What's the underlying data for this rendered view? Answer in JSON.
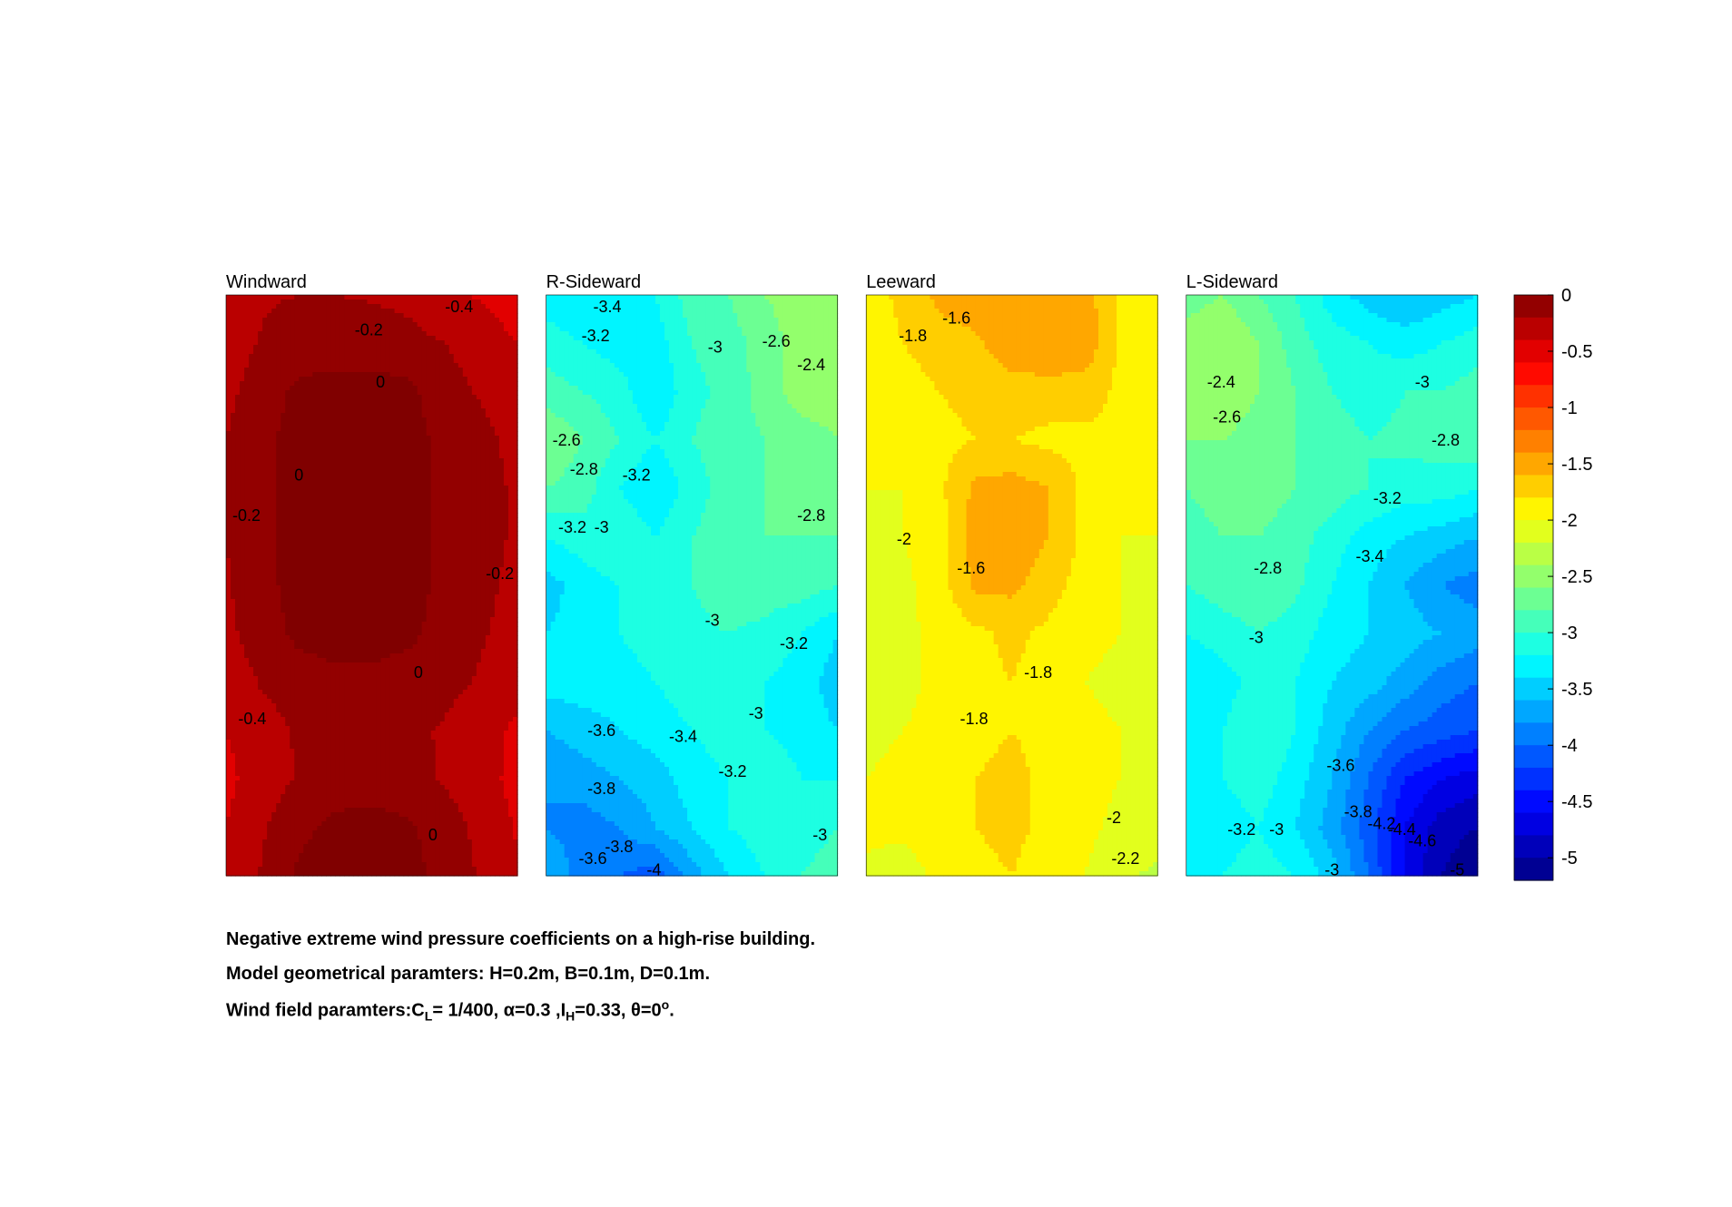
{
  "chart_data": {
    "type": "contour",
    "colormap": "jet",
    "colorbar": {
      "ticks": [
        "0",
        "-0.5",
        "-1",
        "-1.5",
        "-2",
        "-2.5",
        "-3",
        "-3.5",
        "-4",
        "-4.5",
        "-5"
      ],
      "range": [
        -5.2,
        0
      ]
    },
    "panels": [
      {
        "title": "Windward",
        "grid": [
          [
            -0.4,
            -0.22,
            -0.2,
            -0.2,
            -0.22,
            -0.25,
            -0.35,
            -0.42,
            -0.5
          ],
          [
            -0.3,
            -0.18,
            -0.12,
            -0.1,
            -0.1,
            -0.14,
            -0.2,
            -0.3,
            -0.4
          ],
          [
            -0.25,
            -0.1,
            0.05,
            0.08,
            0.08,
            0.05,
            -0.12,
            -0.22,
            -0.3
          ],
          [
            -0.2,
            -0.05,
            0.08,
            0.1,
            0.1,
            0.08,
            -0.05,
            -0.15,
            -0.25
          ],
          [
            -0.2,
            -0.05,
            0.1,
            0.12,
            0.12,
            0.1,
            -0.05,
            -0.15,
            -0.22
          ],
          [
            -0.2,
            -0.05,
            0.1,
            0.12,
            0.12,
            0.1,
            -0.05,
            -0.15,
            -0.22
          ],
          [
            -0.22,
            -0.06,
            0.08,
            0.1,
            0.1,
            0.08,
            -0.05,
            -0.15,
            -0.25
          ],
          [
            -0.25,
            -0.1,
            0.05,
            0.08,
            0.08,
            0.05,
            -0.08,
            -0.18,
            -0.28
          ],
          [
            -0.32,
            -0.18,
            -0.1,
            -0.05,
            -0.05,
            -0.1,
            -0.15,
            -0.22,
            -0.32
          ],
          [
            -0.4,
            -0.28,
            -0.18,
            -0.14,
            -0.14,
            -0.16,
            -0.22,
            -0.3,
            -0.45
          ],
          [
            -0.45,
            -0.3,
            -0.18,
            -0.1,
            -0.1,
            -0.14,
            -0.22,
            -0.3,
            -0.48
          ],
          [
            -0.4,
            -0.22,
            -0.05,
            0.05,
            0.08,
            0.04,
            -0.12,
            -0.25,
            -0.42
          ],
          [
            -0.35,
            -0.18,
            0.04,
            0.1,
            0.12,
            0.08,
            -0.08,
            -0.22,
            -0.38
          ]
        ],
        "labels": [
          {
            "text": "-0.4",
            "x": 0.8,
            "y": 0.02
          },
          {
            "text": "-0.2",
            "x": 0.49,
            "y": 0.06
          },
          {
            "text": "0",
            "x": 0.53,
            "y": 0.15
          },
          {
            "text": "0",
            "x": 0.25,
            "y": 0.31
          },
          {
            "text": "-0.2",
            "x": 0.07,
            "y": 0.38
          },
          {
            "text": "-0.2",
            "x": 0.94,
            "y": 0.48
          },
          {
            "text": "0",
            "x": 0.66,
            "y": 0.65
          },
          {
            "text": "-0.4",
            "x": 0.09,
            "y": 0.73
          },
          {
            "text": "0",
            "x": 0.71,
            "y": 0.93
          }
        ]
      },
      {
        "title": "R-Sideward",
        "grid": [
          [
            -3.3,
            -3.4,
            -3.35,
            -3.2,
            -2.9,
            -2.8,
            -2.6,
            -2.5,
            -2.6
          ],
          [
            -3.1,
            -3.2,
            -3.3,
            -3.3,
            -3.0,
            -2.9,
            -2.7,
            -2.5,
            -2.4
          ],
          [
            -2.9,
            -3.0,
            -3.1,
            -3.4,
            -3.05,
            -2.95,
            -2.7,
            -2.5,
            -2.5
          ],
          [
            -2.6,
            -2.8,
            -3.0,
            -3.2,
            -3.0,
            -2.9,
            -2.8,
            -2.7,
            -2.6
          ],
          [
            -2.8,
            -2.9,
            -3.2,
            -3.4,
            -3.1,
            -2.9,
            -2.8,
            -2.8,
            -2.7
          ],
          [
            -3.2,
            -3.1,
            -3.0,
            -3.2,
            -3.0,
            -2.9,
            -2.8,
            -2.8,
            -2.8
          ],
          [
            -3.5,
            -3.3,
            -3.2,
            -3.1,
            -3.0,
            -2.9,
            -2.9,
            -2.9,
            -3.0
          ],
          [
            -3.4,
            -3.3,
            -3.2,
            -3.1,
            -3.05,
            -3.0,
            -3.05,
            -3.2,
            -3.4
          ],
          [
            -3.3,
            -3.3,
            -3.3,
            -3.2,
            -3.1,
            -3.1,
            -3.2,
            -3.3,
            -3.5
          ],
          [
            -3.6,
            -3.5,
            -3.4,
            -3.3,
            -3.2,
            -3.1,
            -3.2,
            -3.3,
            -3.4
          ],
          [
            -3.8,
            -3.7,
            -3.6,
            -3.5,
            -3.3,
            -3.2,
            -3.0,
            -3.2,
            -3.2
          ],
          [
            -3.8,
            -3.9,
            -3.8,
            -3.6,
            -3.4,
            -3.2,
            -3.1,
            -3.1,
            -3.0
          ],
          [
            -3.6,
            -3.9,
            -4.0,
            -4.1,
            -3.7,
            -3.4,
            -3.2,
            -3.0,
            -2.9
          ]
        ],
        "labels": [
          {
            "text": "-3.4",
            "x": 0.21,
            "y": 0.02
          },
          {
            "text": "-3.2",
            "x": 0.17,
            "y": 0.07
          },
          {
            "text": "-3",
            "x": 0.58,
            "y": 0.09
          },
          {
            "text": "-2.6",
            "x": 0.79,
            "y": 0.08
          },
          {
            "text": "-2.4",
            "x": 0.91,
            "y": 0.12
          },
          {
            "text": "-2.6",
            "x": 0.07,
            "y": 0.25
          },
          {
            "text": "-2.8",
            "x": 0.13,
            "y": 0.3
          },
          {
            "text": "-3.2",
            "x": 0.31,
            "y": 0.31
          },
          {
            "text": "-3.2",
            "x": 0.09,
            "y": 0.4
          },
          {
            "text": "-3",
            "x": 0.19,
            "y": 0.4
          },
          {
            "text": "-2.8",
            "x": 0.91,
            "y": 0.38
          },
          {
            "text": "-3",
            "x": 0.57,
            "y": 0.56
          },
          {
            "text": "-3.2",
            "x": 0.85,
            "y": 0.6
          },
          {
            "text": "-3",
            "x": 0.72,
            "y": 0.72
          },
          {
            "text": "-3.6",
            "x": 0.19,
            "y": 0.75
          },
          {
            "text": "-3.4",
            "x": 0.47,
            "y": 0.76
          },
          {
            "text": "-3.2",
            "x": 0.64,
            "y": 0.82
          },
          {
            "text": "-3.8",
            "x": 0.19,
            "y": 0.85
          },
          {
            "text": "-3",
            "x": 0.94,
            "y": 0.93
          },
          {
            "text": "-3.8",
            "x": 0.25,
            "y": 0.95
          },
          {
            "text": "-3.6",
            "x": 0.16,
            "y": 0.97
          },
          {
            "text": "-4",
            "x": 0.37,
            "y": 0.99
          }
        ]
      },
      {
        "title": "Leeward",
        "grid": [
          [
            -1.9,
            -1.75,
            -1.55,
            -1.45,
            -1.4,
            -1.45,
            -1.5,
            -1.85,
            -1.9
          ],
          [
            -1.95,
            -1.8,
            -1.7,
            -1.65,
            -1.45,
            -1.4,
            -1.45,
            -1.85,
            -1.9
          ],
          [
            -1.95,
            -1.9,
            -1.8,
            -1.75,
            -1.7,
            -1.7,
            -1.7,
            -1.85,
            -1.85
          ],
          [
            -2.0,
            -1.95,
            -1.85,
            -1.8,
            -1.8,
            -1.85,
            -1.85,
            -1.85,
            -1.85
          ],
          [
            -2.0,
            -2.0,
            -1.85,
            -1.55,
            -1.5,
            -1.6,
            -1.85,
            -1.9,
            -1.9
          ],
          [
            -2.05,
            -2.0,
            -1.9,
            -1.5,
            -1.45,
            -1.6,
            -1.85,
            -2.0,
            -2.0
          ],
          [
            -2.05,
            -2.05,
            -1.9,
            -1.55,
            -1.55,
            -1.7,
            -1.9,
            -2.0,
            -2.05
          ],
          [
            -2.05,
            -2.05,
            -1.95,
            -1.85,
            -1.75,
            -1.85,
            -1.95,
            -2.0,
            -2.05
          ],
          [
            -2.05,
            -2.05,
            -1.95,
            -1.85,
            -1.8,
            -1.9,
            -2.0,
            -2.05,
            -2.1
          ],
          [
            -2.05,
            -2.0,
            -1.95,
            -1.85,
            -1.8,
            -1.85,
            -1.95,
            -2.0,
            -2.05
          ],
          [
            -2.0,
            -1.95,
            -1.9,
            -1.8,
            -1.75,
            -1.85,
            -1.95,
            -2.0,
            -2.0
          ],
          [
            -1.95,
            -1.95,
            -1.9,
            -1.8,
            -1.75,
            -1.85,
            -1.95,
            -2.05,
            -2.1
          ],
          [
            -2.05,
            -2.1,
            -1.95,
            -1.85,
            -1.8,
            -1.9,
            -2.0,
            -2.15,
            -2.25
          ]
        ],
        "labels": [
          {
            "text": "-1.6",
            "x": 0.31,
            "y": 0.04
          },
          {
            "text": "-1.8",
            "x": 0.16,
            "y": 0.07
          },
          {
            "text": "-2",
            "x": 0.13,
            "y": 0.42
          },
          {
            "text": "-1.6",
            "x": 0.36,
            "y": 0.47
          },
          {
            "text": "-1.8",
            "x": 0.59,
            "y": 0.65
          },
          {
            "text": "-1.8",
            "x": 0.37,
            "y": 0.73
          },
          {
            "text": "-2",
            "x": 0.85,
            "y": 0.9
          },
          {
            "text": "-2.2",
            "x": 0.89,
            "y": 0.97
          }
        ]
      },
      {
        "title": "L-Sideward",
        "grid": [
          [
            -2.7,
            -2.6,
            -2.8,
            -3.0,
            -3.3,
            -3.5,
            -3.6,
            -3.5,
            -3.4
          ],
          [
            -2.5,
            -2.4,
            -2.6,
            -2.9,
            -3.1,
            -3.2,
            -3.3,
            -3.2,
            -3.1
          ],
          [
            -2.5,
            -2.45,
            -2.6,
            -2.8,
            -3.0,
            -3.1,
            -3.0,
            -3.0,
            -2.9
          ],
          [
            -2.6,
            -2.6,
            -2.7,
            -2.8,
            -2.9,
            -3.0,
            -2.95,
            -2.9,
            -2.8
          ],
          [
            -2.8,
            -2.7,
            -2.7,
            -2.8,
            -2.9,
            -3.0,
            -3.1,
            -3.1,
            -3.2
          ],
          [
            -2.9,
            -2.8,
            -2.8,
            -2.9,
            -3.1,
            -3.3,
            -3.4,
            -3.5,
            -3.6
          ],
          [
            -3.0,
            -2.9,
            -2.85,
            -2.95,
            -3.2,
            -3.4,
            -3.6,
            -3.8,
            -3.9
          ],
          [
            -3.2,
            -3.1,
            -3.0,
            -3.1,
            -3.3,
            -3.4,
            -3.5,
            -3.6,
            -3.7
          ],
          [
            -3.4,
            -3.3,
            -3.1,
            -3.2,
            -3.4,
            -3.5,
            -3.7,
            -3.9,
            -4.0
          ],
          [
            -3.4,
            -3.2,
            -3.0,
            -3.2,
            -3.5,
            -3.8,
            -4.0,
            -4.1,
            -4.2
          ],
          [
            -3.3,
            -3.2,
            -3.1,
            -3.3,
            -3.6,
            -4.0,
            -4.4,
            -4.6,
            -4.7
          ],
          [
            -3.3,
            -3.3,
            -3.2,
            -3.4,
            -3.7,
            -4.1,
            -4.6,
            -4.9,
            -5.0
          ],
          [
            -3.3,
            -3.2,
            -3.1,
            -3.2,
            -3.5,
            -4.0,
            -4.6,
            -5.0,
            -5.2
          ]
        ],
        "labels": [
          {
            "text": "-2.4",
            "x": 0.12,
            "y": 0.15
          },
          {
            "text": "-3",
            "x": 0.81,
            "y": 0.15
          },
          {
            "text": "-2.6",
            "x": 0.14,
            "y": 0.21
          },
          {
            "text": "-2.8",
            "x": 0.89,
            "y": 0.25
          },
          {
            "text": "-3.2",
            "x": 0.69,
            "y": 0.35
          },
          {
            "text": "-3.4",
            "x": 0.63,
            "y": 0.45
          },
          {
            "text": "-2.8",
            "x": 0.28,
            "y": 0.47
          },
          {
            "text": "-3",
            "x": 0.24,
            "y": 0.59
          },
          {
            "text": "-3.6",
            "x": 0.53,
            "y": 0.81
          },
          {
            "text": "-3.8",
            "x": 0.59,
            "y": 0.89
          },
          {
            "text": "-4.2",
            "x": 0.67,
            "y": 0.91
          },
          {
            "text": "-4.4",
            "x": 0.74,
            "y": 0.92
          },
          {
            "text": "-4.6",
            "x": 0.81,
            "y": 0.94
          },
          {
            "text": "-3.2",
            "x": 0.19,
            "y": 0.92
          },
          {
            "text": "-3",
            "x": 0.31,
            "y": 0.92
          },
          {
            "text": "-3",
            "x": 0.5,
            "y": 0.99
          },
          {
            "text": "-5",
            "x": 0.93,
            "y": 0.99
          }
        ]
      }
    ]
  },
  "caption": {
    "line1": "Negative extreme wind pressure coefficients on a high-rise building.",
    "line2": "Model geometrical paramters: H=0.2m, B=0.1m, D=0.1m.",
    "line3_prefix": "Wind field paramters:C",
    "line3_sub_l": "L",
    "line3_mid1": "= 1/400, α=0.3 ,I",
    "line3_sub_h": "H",
    "line3_mid2": "=0.33, θ=0",
    "line3_sup": "o",
    "line3_end": "."
  }
}
